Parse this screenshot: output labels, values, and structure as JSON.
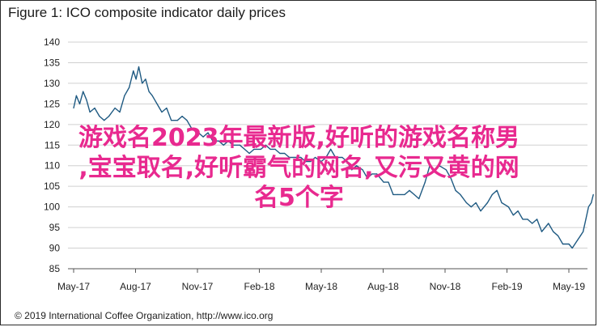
{
  "header": {
    "title": "Figure 1: ICO composite indicator daily prices"
  },
  "footer": {
    "credit": "© 2019 International Coffee Organization, http://www.ico.org"
  },
  "overlay": {
    "text": "游戏名2023年最新版,好听的游戏名称男\n,宝宝取名,好听霸气的网名,又污又黄的网\n名5个字"
  },
  "colors": {
    "line": "#1f5a82",
    "grid": "#d0d0d0",
    "axis": "#555555",
    "overlay": "#e8298f"
  },
  "chart_data": {
    "type": "line",
    "title": "Figure 1: ICO composite indicator daily prices",
    "xlabel": "",
    "ylabel": "",
    "x_ticks": [
      "May-17",
      "Aug-17",
      "Nov-17",
      "Feb-18",
      "May-18",
      "Aug-18",
      "Nov-18",
      "Feb-19",
      "May-19"
    ],
    "ylim": [
      85,
      140
    ],
    "y_ticks": [
      85,
      90,
      95,
      100,
      105,
      110,
      115,
      120,
      125,
      130,
      135,
      140
    ],
    "grid": true,
    "series": [
      {
        "name": "",
        "x": [
          "2017-05-01",
          "2017-05-05",
          "2017-05-10",
          "2017-05-15",
          "2017-05-20",
          "2017-05-25",
          "2017-06-01",
          "2017-06-08",
          "2017-06-15",
          "2017-06-22",
          "2017-07-01",
          "2017-07-08",
          "2017-07-15",
          "2017-07-22",
          "2017-07-28",
          "2017-08-01",
          "2017-08-05",
          "2017-08-10",
          "2017-08-15",
          "2017-08-20",
          "2017-08-25",
          "2017-09-01",
          "2017-09-08",
          "2017-09-15",
          "2017-09-22",
          "2017-10-01",
          "2017-10-08",
          "2017-10-15",
          "2017-10-22",
          "2017-11-01",
          "2017-11-08",
          "2017-11-15",
          "2017-11-22",
          "2017-12-01",
          "2017-12-08",
          "2017-12-15",
          "2017-12-22",
          "2018-01-01",
          "2018-01-08",
          "2018-01-15",
          "2018-01-22",
          "2018-02-01",
          "2018-02-08",
          "2018-02-15",
          "2018-02-22",
          "2018-03-01",
          "2018-03-08",
          "2018-03-15",
          "2018-03-22",
          "2018-04-01",
          "2018-04-08",
          "2018-04-15",
          "2018-04-22",
          "2018-05-01",
          "2018-05-08",
          "2018-05-15",
          "2018-05-22",
          "2018-06-01",
          "2018-06-08",
          "2018-06-15",
          "2018-06-22",
          "2018-07-01",
          "2018-07-08",
          "2018-07-15",
          "2018-07-22",
          "2018-08-01",
          "2018-08-08",
          "2018-08-15",
          "2018-08-22",
          "2018-09-01",
          "2018-09-08",
          "2018-09-15",
          "2018-09-22",
          "2018-10-01",
          "2018-10-08",
          "2018-10-15",
          "2018-10-22",
          "2018-11-01",
          "2018-11-08",
          "2018-11-15",
          "2018-11-22",
          "2018-12-01",
          "2018-12-08",
          "2018-12-15",
          "2018-12-22",
          "2019-01-01",
          "2019-01-08",
          "2019-01-15",
          "2019-01-22",
          "2019-02-01",
          "2019-02-08",
          "2019-02-15",
          "2019-02-22",
          "2019-03-01",
          "2019-03-08",
          "2019-03-15",
          "2019-03-22",
          "2019-04-01",
          "2019-04-08",
          "2019-04-15",
          "2019-04-22",
          "2019-05-01",
          "2019-05-06",
          "2019-05-10",
          "2019-05-14",
          "2019-05-18",
          "2019-05-22",
          "2019-05-26",
          "2019-05-30",
          "2019-06-03",
          "2019-06-06"
        ],
        "values": [
          124,
          127,
          125,
          128,
          126,
          123,
          124,
          122,
          121,
          122,
          124,
          123,
          127,
          129,
          133,
          131,
          134,
          130,
          131,
          128,
          127,
          125,
          123,
          124,
          121,
          121,
          122,
          121,
          119,
          118,
          117,
          118,
          116,
          116,
          115,
          116,
          115,
          115,
          114,
          113,
          114,
          114,
          115,
          114,
          114,
          113,
          113,
          112,
          112,
          112,
          111,
          111,
          112,
          111,
          112,
          114,
          112,
          112,
          111,
          109,
          110,
          109,
          107,
          108,
          108,
          106,
          106,
          103,
          103,
          103,
          104,
          103,
          102,
          106,
          110,
          109,
          110,
          109,
          107,
          104,
          103,
          101,
          100,
          101,
          99,
          101,
          103,
          104,
          101,
          100,
          98,
          99,
          97,
          97,
          96,
          97,
          94,
          96,
          94,
          93,
          91,
          91,
          90,
          91,
          92,
          93,
          94,
          97,
          100,
          101,
          103
        ]
      }
    ]
  }
}
